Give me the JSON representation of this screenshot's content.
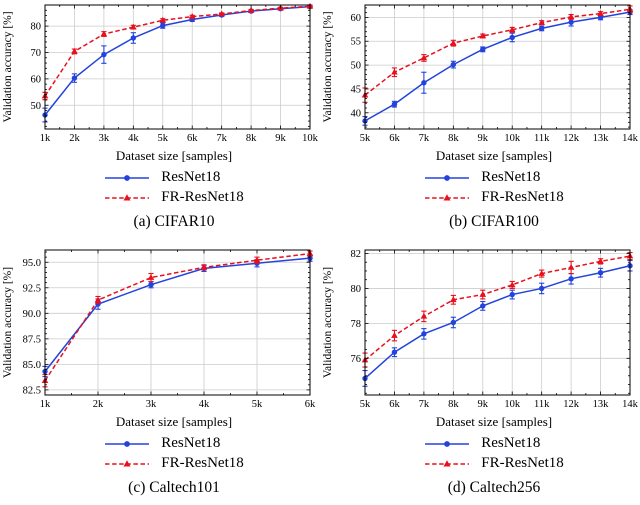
{
  "figure": {
    "background": "#ffffff",
    "type": "academic-figure-2x2-line-charts"
  },
  "colors": {
    "resnet18": "#2343dd",
    "fr_resnet18": "#e8101c",
    "grid": "#cccccc",
    "axis": "#000000"
  },
  "chart_data": [
    {
      "type": "line",
      "caption": "(a) CIFAR10",
      "xlabel": "Dataset size [samples]",
      "ylabel": "Validation accuracy [%]",
      "x": [
        1000,
        2000,
        3000,
        4000,
        5000,
        6000,
        7000,
        8000,
        9000,
        10000
      ],
      "xtick_labels": [
        "1k",
        "2k",
        "3k",
        "4k",
        "5k",
        "6k",
        "7k",
        "8k",
        "9k",
        "10k"
      ],
      "ylim": [
        41.0,
        88.0
      ],
      "yticks": [
        50,
        60,
        70,
        80
      ],
      "ytick_labels": [
        "50",
        "60",
        "70",
        "80"
      ],
      "yminor_step": 2,
      "legend_position": "below",
      "grid": true,
      "series": [
        {
          "name": "ResNet18",
          "color": "#2343dd",
          "marker": "circle",
          "dashed": false,
          "values": [
            46.3,
            60.3,
            69.2,
            75.5,
            80.2,
            82.5,
            84.2,
            85.7,
            86.6,
            87.4
          ],
          "errors": [
            2.6,
            1.6,
            3.3,
            2.0,
            1.0,
            0.7,
            0.5,
            0.4,
            0.4,
            0.5
          ]
        },
        {
          "name": "FR-ResNet18",
          "color": "#e8101c",
          "marker": "triangle",
          "dashed": true,
          "values": [
            53.5,
            70.4,
            77.0,
            79.6,
            82.2,
            83.6,
            84.6,
            85.9,
            86.8,
            87.5
          ],
          "errors": [
            1.4,
            0.9,
            0.9,
            0.7,
            0.6,
            0.5,
            0.4,
            0.4,
            0.3,
            0.4
          ]
        }
      ]
    },
    {
      "type": "line",
      "caption": "(b) CIFAR100",
      "xlabel": "Dataset size [samples]",
      "ylabel": "Validation accuracy [%]",
      "x": [
        5000,
        6000,
        7000,
        8000,
        9000,
        10000,
        11000,
        12000,
        13000,
        14000
      ],
      "xtick_labels": [
        "5k",
        "6k",
        "7k",
        "8k",
        "9k",
        "10k",
        "11k",
        "12k",
        "13k",
        "14k"
      ],
      "ylim": [
        36.6,
        62.6
      ],
      "yticks": [
        40,
        45,
        50,
        55,
        60
      ],
      "ytick_labels": [
        "40",
        "45",
        "50",
        "55",
        "60"
      ],
      "yminor_step": 1,
      "legend_position": "below",
      "grid": true,
      "series": [
        {
          "name": "ResNet18",
          "color": "#2343dd",
          "marker": "circle",
          "dashed": false,
          "values": [
            38.3,
            41.8,
            46.3,
            50.1,
            53.3,
            55.8,
            57.7,
            59.0,
            60.0,
            61.1
          ],
          "errors": [
            0.9,
            0.6,
            2.2,
            0.7,
            0.5,
            0.9,
            0.5,
            0.8,
            0.5,
            0.5
          ]
        },
        {
          "name": "FR-ResNet18",
          "color": "#e8101c",
          "marker": "triangle",
          "dashed": true,
          "values": [
            43.7,
            48.5,
            51.5,
            54.6,
            56.1,
            57.4,
            58.9,
            60.1,
            60.8,
            61.7
          ],
          "errors": [
            1.5,
            0.9,
            0.7,
            0.6,
            0.4,
            0.5,
            0.4,
            0.5,
            0.4,
            0.7
          ]
        }
      ]
    },
    {
      "type": "line",
      "caption": "(c) Caltech101",
      "xlabel": "Dataset size [samples]",
      "ylabel": "Validation accuracy [%]",
      "x": [
        1000,
        2000,
        3000,
        4000,
        5000,
        6000
      ],
      "xtick_labels": [
        "1k",
        "2k",
        "3k",
        "4k",
        "5k",
        "6k"
      ],
      "ylim": [
        82.0,
        96.2
      ],
      "yticks": [
        82.5,
        85.0,
        87.5,
        90.0,
        92.5,
        95.0
      ],
      "ytick_labels": [
        "82.5",
        "85.0",
        "87.5",
        "90.0",
        "92.5",
        "95.0"
      ],
      "yminor_step": 0.5,
      "legend_position": "below",
      "grid": true,
      "series": [
        {
          "name": "ResNet18",
          "color": "#2343dd",
          "marker": "circle",
          "dashed": false,
          "values": [
            84.3,
            90.9,
            92.8,
            94.4,
            94.9,
            95.4
          ],
          "errors": [
            0.5,
            0.5,
            0.3,
            0.3,
            0.35,
            0.3
          ]
        },
        {
          "name": "FR-ResNet18",
          "color": "#e8101c",
          "marker": "triangle",
          "dashed": true,
          "values": [
            83.4,
            91.3,
            93.5,
            94.5,
            95.2,
            95.85
          ],
          "errors": [
            0.6,
            0.35,
            0.4,
            0.25,
            0.3,
            0.25
          ]
        }
      ]
    },
    {
      "type": "line",
      "caption": "(d) Caltech256",
      "xlabel": "Dataset size [samples]",
      "ylabel": "Validation accuracy [%]",
      "x": [
        5000,
        6000,
        7000,
        8000,
        9000,
        10000,
        11000,
        12000,
        13000,
        14000
      ],
      "xtick_labels": [
        "5k",
        "6k",
        "7k",
        "8k",
        "9k",
        "10k",
        "11k",
        "12k",
        "13k",
        "14k"
      ],
      "ylim": [
        73.9,
        82.2
      ],
      "yticks": [
        76,
        78,
        80,
        82
      ],
      "ytick_labels": [
        "76",
        "78",
        "80",
        "82"
      ],
      "yminor_step": 0.5,
      "legend_position": "below",
      "grid": true,
      "series": [
        {
          "name": "ResNet18",
          "color": "#2343dd",
          "marker": "circle",
          "dashed": false,
          "values": [
            74.85,
            76.35,
            77.4,
            78.05,
            79.0,
            79.65,
            80.0,
            80.55,
            80.9,
            81.3
          ],
          "errors": [
            0.45,
            0.25,
            0.3,
            0.3,
            0.25,
            0.25,
            0.3,
            0.3,
            0.25,
            0.3
          ]
        },
        {
          "name": "FR-ResNet18",
          "color": "#e8101c",
          "marker": "triangle",
          "dashed": true,
          "values": [
            75.9,
            77.3,
            78.4,
            79.35,
            79.65,
            80.2,
            80.85,
            81.2,
            81.55,
            81.85
          ],
          "errors": [
            0.4,
            0.3,
            0.3,
            0.25,
            0.25,
            0.2,
            0.2,
            0.35,
            0.15,
            0.2
          ]
        }
      ]
    }
  ]
}
